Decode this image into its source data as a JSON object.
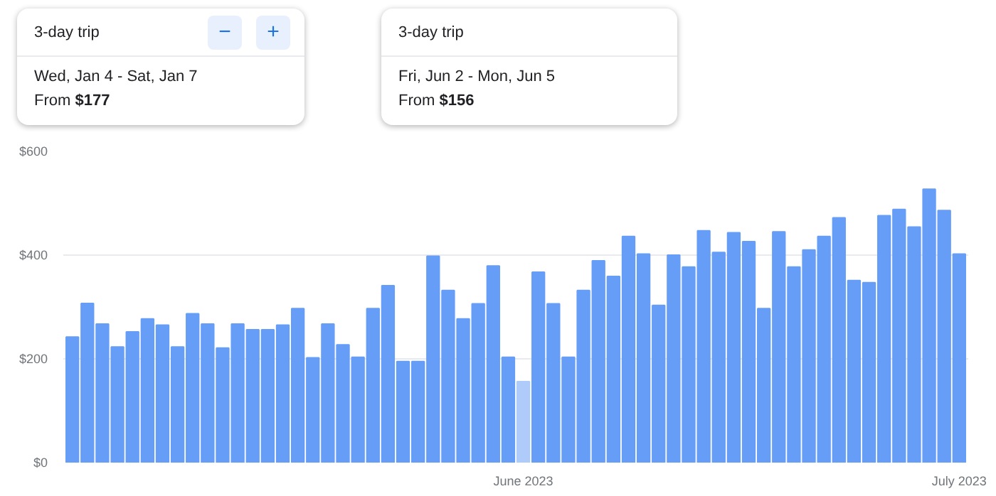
{
  "chart_data": {
    "type": "bar",
    "categories": [
      null,
      null,
      null,
      null,
      null,
      null,
      null,
      null,
      null,
      null,
      null,
      null,
      null,
      null,
      null,
      null,
      null,
      null,
      null,
      null,
      null,
      null,
      null,
      null,
      null,
      null,
      null,
      null,
      null,
      null,
      "June 2023",
      null,
      null,
      null,
      null,
      null,
      null,
      null,
      null,
      null,
      null,
      null,
      null,
      null,
      null,
      null,
      null,
      null,
      null,
      null,
      null,
      null,
      null,
      null,
      null,
      null,
      null,
      null,
      null,
      "July 2023"
    ],
    "values": [
      242,
      307,
      267,
      223,
      252,
      277,
      265,
      223,
      287,
      267,
      221,
      267,
      256,
      256,
      265,
      297,
      202,
      267,
      227,
      203,
      297,
      341,
      195,
      195,
      398,
      332,
      277,
      306,
      379,
      203,
      156,
      367,
      306,
      203,
      332,
      389,
      359,
      436,
      402,
      303,
      400,
      377,
      447,
      405,
      443,
      426,
      297,
      445,
      377,
      410,
      436,
      472,
      351,
      347,
      476,
      488,
      454,
      527,
      486,
      402
    ],
    "colors": [
      "#669df6",
      "#669df6",
      "#669df6",
      "#669df6",
      "#669df6",
      "#669df6",
      "#669df6",
      "#669df6",
      "#669df6",
      "#669df6",
      "#669df6",
      "#669df6",
      "#669df6",
      "#669df6",
      "#669df6",
      "#669df6",
      "#669df6",
      "#669df6",
      "#669df6",
      "#669df6",
      "#669df6",
      "#669df6",
      "#669df6",
      "#669df6",
      "#669df6",
      "#669df6",
      "#669df6",
      "#669df6",
      "#669df6",
      "#669df6",
      "#aecbfa",
      "#669df6",
      "#669df6",
      "#669df6",
      "#669df6",
      "#669df6",
      "#669df6",
      "#669df6",
      "#669df6",
      "#669df6",
      "#669df6",
      "#669df6",
      "#669df6",
      "#669df6",
      "#669df6",
      "#669df6",
      "#669df6",
      "#669df6",
      "#669df6",
      "#669df6",
      "#669df6",
      "#669df6",
      "#669df6",
      "#669df6",
      "#669df6",
      "#669df6",
      "#669df6",
      "#669df6",
      "#669df6",
      "#669df6"
    ],
    "ylim": [
      0,
      600
    ],
    "yticks": [
      {
        "value": 0,
        "label": "$0"
      },
      {
        "value": 200,
        "label": "$200"
      },
      {
        "value": 400,
        "label": "$400"
      },
      {
        "value": 600,
        "label": "$600"
      }
    ],
    "grid": "y",
    "annotations": [
      "3-day trip\nWed, Jan 4 - Sat, Jan 7\nFrom $177",
      "−",
      "+",
      "3-day trip\nFri, Jun 2 - Mon, Jun 5\nFrom $156"
    ]
  }
}
